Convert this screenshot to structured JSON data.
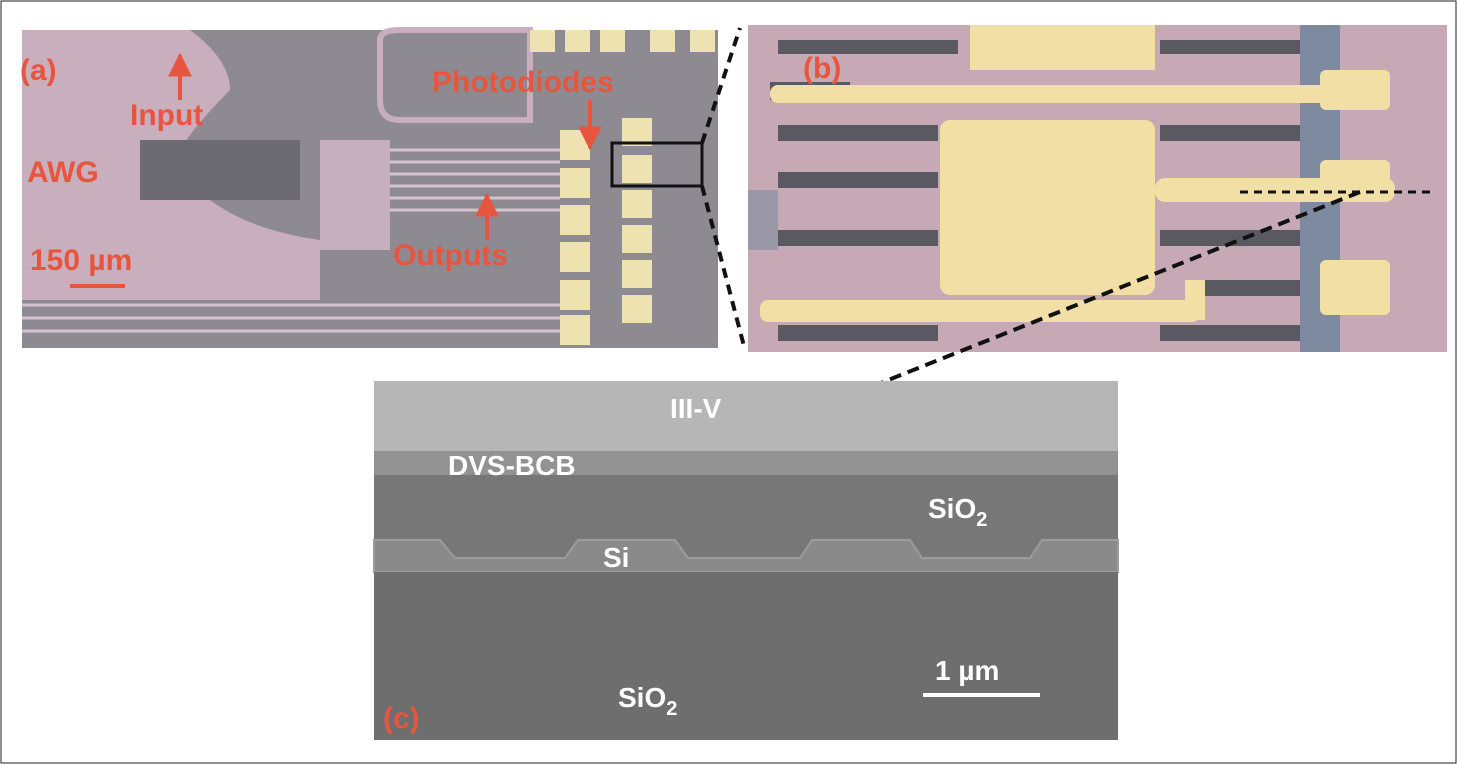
{
  "panel_a": {
    "label": "(a)",
    "annotations": [
      "Input",
      "AWG",
      "Photodiodes",
      "Outputs"
    ],
    "scale_bar": "150 µm"
  },
  "panel_b": {
    "label": "(b)"
  },
  "panel_c": {
    "label": "(c)",
    "layers": {
      "top": "III-V",
      "bonding": "DVS-BCB",
      "waveguide": "Si"
    },
    "oxide_upper": {
      "base": "SiO",
      "sub": "2"
    },
    "oxide_lower": {
      "base": "SiO",
      "sub": "2"
    },
    "scale_bar": "1 µm"
  }
}
